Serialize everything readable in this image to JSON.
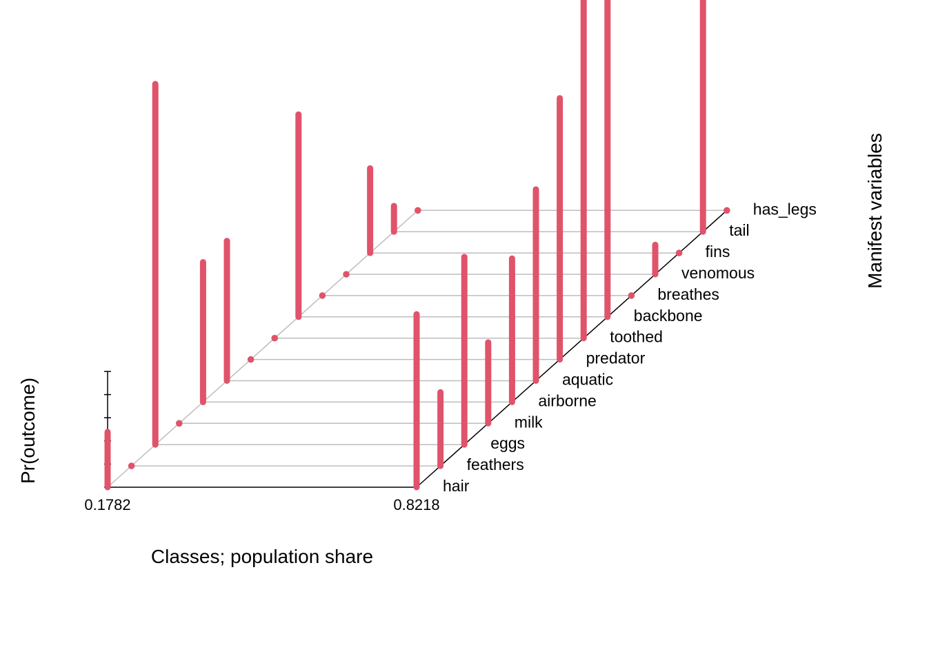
{
  "chart_data": {
    "type": "bar",
    "subtype": "3d-probability-bars",
    "xlabel": "Classes; population share",
    "ylabel": "Pr(outcome)",
    "zlabel": "Manifest variables",
    "classes": [
      "0.1782",
      "0.8218"
    ],
    "variables": [
      "hair",
      "feathers",
      "eggs",
      "milk",
      "airborne",
      "aquatic",
      "predator",
      "toothed",
      "backbone",
      "breathes",
      "venomous",
      "fins",
      "tail",
      "has_legs"
    ],
    "ylim": [
      0,
      1
    ],
    "series": [
      {
        "name": "0.1782",
        "values": [
          0.15,
          0.0,
          0.98,
          0.0,
          0.38,
          0.38,
          0.0,
          0.0,
          0.55,
          0.0,
          0.0,
          0.23,
          0.07,
          0.0
        ]
      },
      {
        "name": "0.8218",
        "values": [
          0.47,
          0.2,
          0.51,
          0.22,
          0.39,
          0.52,
          0.71,
          1.0,
          0.87,
          0.0,
          0.08,
          0.0,
          0.71,
          0.0
        ]
      }
    ],
    "series_note_dummy": "",
    "bar_color": "#e0536b",
    "grid": true
  }
}
